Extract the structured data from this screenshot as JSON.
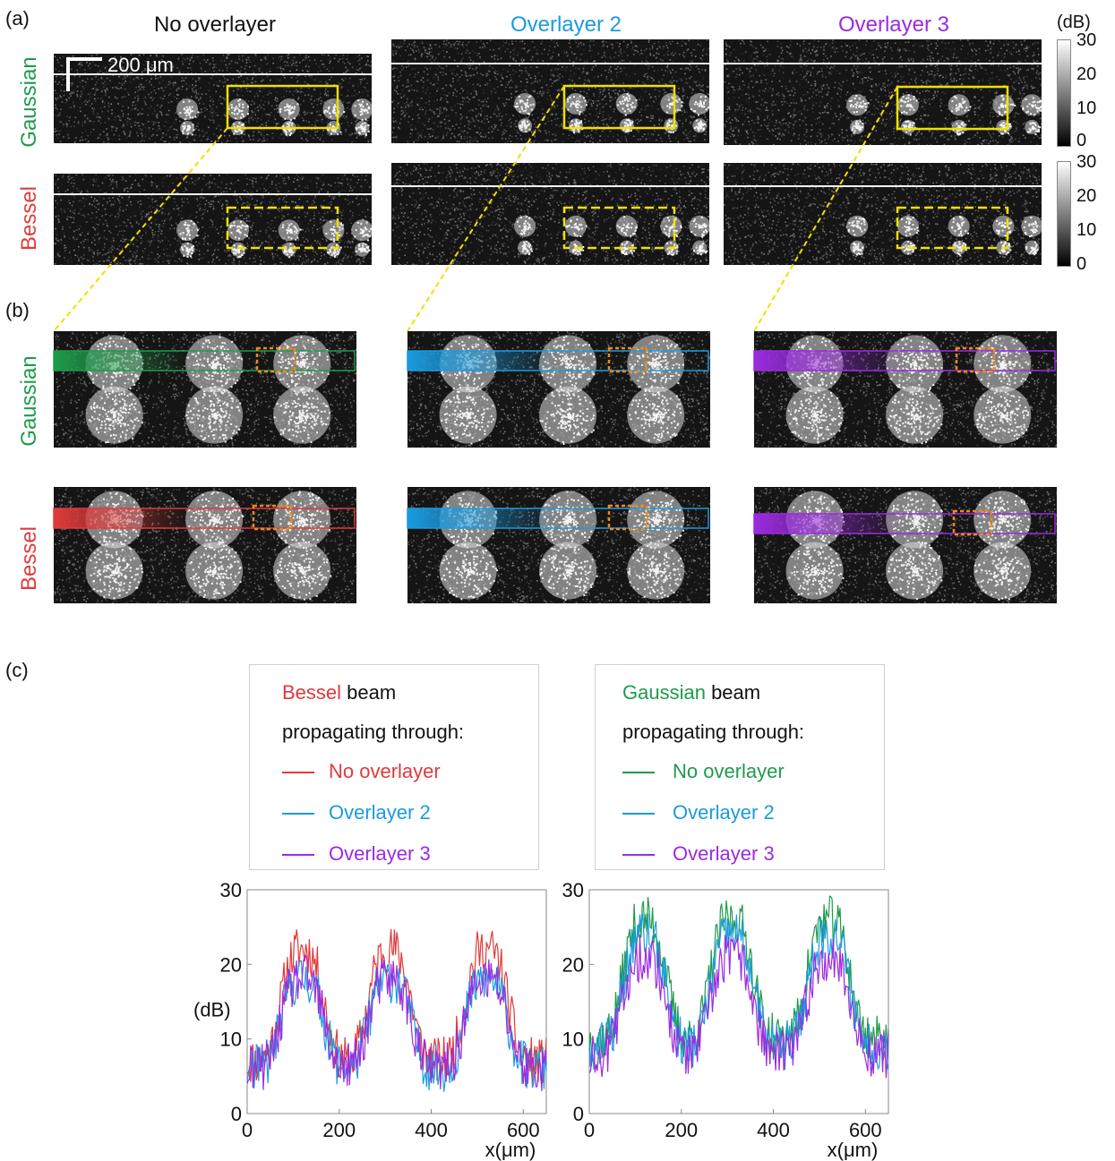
{
  "panel_labels": {
    "a": "(a)",
    "b": "(b)",
    "c": "(c)"
  },
  "columns": [
    {
      "title": "No overlayer",
      "color": "#111111"
    },
    {
      "title": "Overlayer 2",
      "color": "#1a9be0"
    },
    {
      "title": "Overlayer 3",
      "color": "#9b2be0"
    }
  ],
  "rows": [
    {
      "label": "Gaussian",
      "color": "#1e9b4b"
    },
    {
      "label": "Bessel",
      "color": "#e03a3a"
    }
  ],
  "scale_bar": "200 μm",
  "colorbar": {
    "unit": "(dB)",
    "ticks": [
      "30",
      "20",
      "10",
      "0"
    ]
  },
  "colors": {
    "roi_box": "#f0e000",
    "orange_box": "#f08a1e",
    "gaussian_strip": "#1e9b4b",
    "bessel_strip": "#e03a3a",
    "overlayer2_strip": "#1a9be0",
    "overlayer3_strip": "#9b2be0"
  },
  "legends": [
    {
      "beam": "Bessel",
      "beam_color": "#e03a3a",
      "beam_suffix": " beam",
      "subtitle": "propagating through:",
      "entries": [
        {
          "label": "No overlayer",
          "color": "#e03a3a"
        },
        {
          "label": "Overlayer 2",
          "color": "#1a9be0"
        },
        {
          "label": "Overlayer 3",
          "color": "#9b2be0"
        }
      ]
    },
    {
      "beam": "Gaussian",
      "beam_color": "#1e9b4b",
      "beam_suffix": " beam",
      "subtitle": "propagating through:",
      "entries": [
        {
          "label": "No overlayer",
          "color": "#1e9b4b"
        },
        {
          "label": "Overlayer 2",
          "color": "#1a9be0"
        },
        {
          "label": "Overlayer 3",
          "color": "#9b2be0"
        }
      ]
    }
  ],
  "chart_data": [
    {
      "type": "line",
      "ylabel": "(dB)",
      "xlabel": "x(μm)",
      "xlim": [
        0,
        650
      ],
      "ylim": [
        0,
        30
      ],
      "xticks": [
        "0",
        "200",
        "400",
        "600"
      ],
      "yticks": [
        "0",
        "10",
        "20",
        "30"
      ],
      "series": [
        {
          "name": "No overlayer",
          "color": "#e03a3a",
          "baseline": 7,
          "peak": 22
        },
        {
          "name": "Overlayer 2",
          "color": "#1a9be0",
          "baseline": 6,
          "peak": 18
        },
        {
          "name": "Overlayer 3",
          "color": "#9b2be0",
          "baseline": 6,
          "peak": 18
        }
      ]
    },
    {
      "type": "line",
      "ylabel": "",
      "xlabel": "x(μm)",
      "xlim": [
        0,
        650
      ],
      "ylim": [
        0,
        30
      ],
      "xticks": [
        "0",
        "200",
        "400",
        "600"
      ],
      "yticks": [
        "0",
        "10",
        "20",
        "30"
      ],
      "series": [
        {
          "name": "No overlayer",
          "color": "#1e9b4b",
          "baseline": 10,
          "peak": 26
        },
        {
          "name": "Overlayer 2",
          "color": "#1a9be0",
          "baseline": 9,
          "peak": 24
        },
        {
          "name": "Overlayer 3",
          "color": "#9b2be0",
          "baseline": 8,
          "peak": 21
        }
      ]
    }
  ]
}
